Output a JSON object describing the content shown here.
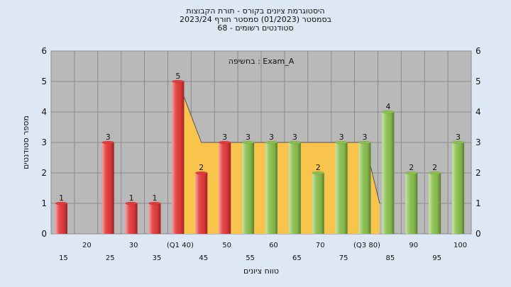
{
  "chart_data": {
    "type": "bar",
    "title_lines": [
      "היסטוגרמת ציונים בקורס - תורת הקבוצות",
      "בסמסטר  (01/2023)  סמסטר חורף  2023/24",
      "סטודנטים רשומים - 68"
    ],
    "annotation": "בחשיפה : Exam_A",
    "xlabel": "טווח ציונים",
    "ylabel": "מספר סטודנטים",
    "ylim": [
      0,
      6
    ],
    "yticks": [
      0,
      1,
      2,
      3,
      4,
      5,
      6
    ],
    "grid": true,
    "categories": [
      "15",
      "20",
      "25",
      "30",
      "35",
      "(Q1 40)",
      "45",
      "50",
      "55",
      "60",
      "65",
      "70",
      "75",
      "(Q3 80)",
      "85",
      "90",
      "95",
      "100"
    ],
    "values": [
      1,
      0,
      3,
      1,
      1,
      5,
      2,
      3,
      3,
      3,
      3,
      2,
      3,
      3,
      4,
      2,
      2,
      3
    ],
    "bar_colors": [
      "red",
      "red",
      "red",
      "red",
      "red",
      "red",
      "red",
      "red",
      "green",
      "green",
      "green",
      "green",
      "green",
      "green",
      "green",
      "green",
      "green",
      "green"
    ],
    "colors": {
      "red": "#e53b3b",
      "green": "#8cc14f",
      "iqr_fill": "#f8c44c",
      "plot_bg": "#b9b9b9",
      "page_bg": "#dde8f4"
    },
    "iqr_band": {
      "from_category": "(Q1 40)",
      "to_category": "(Q3 80)",
      "profile": [
        5,
        3,
        3,
        3,
        3,
        3,
        3,
        3,
        3
      ]
    }
  }
}
